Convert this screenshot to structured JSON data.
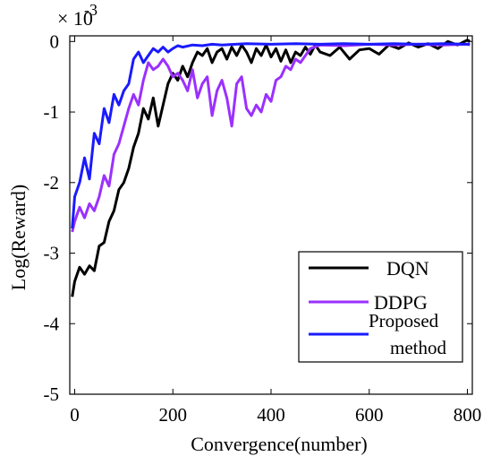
{
  "chart_data": {
    "type": "line",
    "xlabel": "Convergence(number)",
    "ylabel": "Log(Reward)",
    "y_multiplier": "× 10",
    "y_multiplier_exp": "-3",
    "xlim": [
      -10,
      810
    ],
    "ylim": [
      -5,
      0.08
    ],
    "x_ticks": [
      0,
      200,
      400,
      600,
      800
    ],
    "y_ticks": [
      0,
      -1,
      -2,
      -3,
      -4,
      -5
    ],
    "grid": false,
    "legend_position": "bottom-right",
    "series": [
      {
        "name": "DQN",
        "color": "#000000",
        "x": [
          -5,
          0,
          10,
          20,
          30,
          40,
          50,
          60,
          70,
          80,
          90,
          100,
          110,
          120,
          130,
          140,
          150,
          160,
          170,
          180,
          190,
          200,
          210,
          220,
          230,
          240,
          250,
          260,
          270,
          280,
          290,
          300,
          310,
          320,
          330,
          340,
          350,
          360,
          370,
          380,
          390,
          400,
          410,
          420,
          430,
          440,
          450,
          460,
          470,
          480,
          490,
          500,
          520,
          540,
          560,
          580,
          600,
          620,
          640,
          660,
          680,
          700,
          720,
          740,
          760,
          780,
          800,
          805
        ],
        "y": [
          -3.62,
          -3.4,
          -3.2,
          -3.3,
          -3.18,
          -3.25,
          -2.9,
          -2.85,
          -2.55,
          -2.4,
          -2.1,
          -2.0,
          -1.8,
          -1.5,
          -1.3,
          -0.95,
          -1.1,
          -0.8,
          -1.2,
          -0.9,
          -0.6,
          -0.45,
          -0.55,
          -0.35,
          -0.5,
          -0.3,
          -0.15,
          -0.2,
          -0.1,
          -0.3,
          -0.15,
          -0.1,
          -0.25,
          -0.08,
          -0.2,
          -0.05,
          -0.15,
          -0.3,
          -0.1,
          -0.2,
          -0.05,
          -0.22,
          -0.1,
          -0.28,
          -0.12,
          -0.3,
          -0.15,
          -0.2,
          -0.08,
          -0.18,
          -0.05,
          -0.15,
          -0.2,
          -0.08,
          -0.25,
          -0.12,
          -0.1,
          -0.18,
          -0.05,
          -0.1,
          -0.02,
          -0.08,
          -0.03,
          -0.1,
          0.0,
          -0.05,
          0.02,
          0.0
        ]
      },
      {
        "name": "DDPG",
        "color": "#9b30ff",
        "x": [
          -5,
          0,
          10,
          20,
          30,
          40,
          50,
          60,
          70,
          80,
          90,
          100,
          110,
          120,
          130,
          140,
          150,
          160,
          170,
          180,
          190,
          200,
          210,
          220,
          230,
          240,
          250,
          260,
          270,
          280,
          290,
          300,
          310,
          320,
          330,
          340,
          350,
          360,
          370,
          380,
          390,
          400,
          410,
          420,
          430,
          440,
          450,
          460,
          470,
          480,
          500,
          550,
          600,
          650,
          700,
          750,
          800,
          805
        ],
        "y": [
          -2.7,
          -2.55,
          -2.35,
          -2.5,
          -2.3,
          -2.4,
          -2.2,
          -1.9,
          -2.05,
          -1.6,
          -1.45,
          -1.2,
          -0.95,
          -0.75,
          -0.9,
          -0.55,
          -0.3,
          -0.4,
          -0.35,
          -0.25,
          -0.35,
          -0.5,
          -0.45,
          -0.55,
          -0.7,
          -0.4,
          -0.8,
          -0.6,
          -0.5,
          -1.05,
          -0.7,
          -0.55,
          -0.8,
          -1.2,
          -0.6,
          -0.5,
          -0.95,
          -1.05,
          -0.9,
          -1.0,
          -0.75,
          -0.85,
          -0.55,
          -0.5,
          -0.35,
          -0.4,
          -0.25,
          -0.3,
          -0.2,
          -0.1,
          -0.05,
          -0.06,
          -0.04,
          -0.05,
          -0.04,
          -0.05,
          -0.04,
          -0.05
        ]
      },
      {
        "name": "Proposed method",
        "color": "#1a1aff",
        "x": [
          -5,
          0,
          10,
          20,
          30,
          40,
          50,
          60,
          70,
          80,
          90,
          100,
          110,
          120,
          130,
          140,
          150,
          160,
          170,
          180,
          190,
          200,
          210,
          220,
          240,
          260,
          280,
          300,
          350,
          400,
          450,
          500,
          550,
          600,
          650,
          700,
          750,
          800,
          805
        ],
        "y": [
          -2.65,
          -2.2,
          -2.0,
          -1.65,
          -1.95,
          -1.3,
          -1.45,
          -0.95,
          -1.15,
          -0.75,
          -0.9,
          -0.7,
          -0.6,
          -0.25,
          -0.15,
          -0.3,
          -0.2,
          -0.1,
          -0.15,
          -0.08,
          -0.15,
          -0.1,
          -0.06,
          -0.08,
          -0.05,
          -0.06,
          -0.04,
          -0.05,
          -0.03,
          -0.04,
          -0.03,
          -0.04,
          -0.03,
          -0.04,
          -0.03,
          -0.04,
          -0.03,
          -0.04,
          -0.03
        ]
      }
    ]
  }
}
